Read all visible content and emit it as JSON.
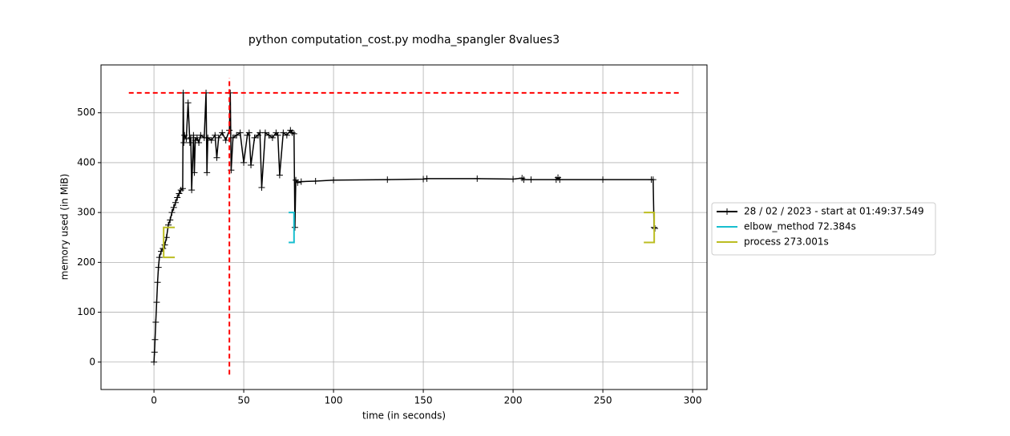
{
  "chart_data": {
    "type": "line",
    "title": "python computation_cost.py modha_spangler 8values3",
    "x_label": "time (in seconds)",
    "y_label": "memory used (in MiB)",
    "xlim": [
      -29.5,
      308
    ],
    "ylim": [
      -55,
      596
    ],
    "xticks": [
      0,
      50,
      100,
      150,
      200,
      250,
      300
    ],
    "yticks": [
      0,
      100,
      200,
      300,
      400,
      500
    ],
    "grid": true,
    "legend": "right",
    "series": [
      {
        "name": "28 / 02 / 2023 - start at 01:49:37.549",
        "color": "#000000",
        "marker": "+",
        "style": "solid",
        "x": [
          0,
          0.3,
          0.6,
          1,
          1.5,
          2,
          2.5,
          3,
          4,
          5,
          6,
          7,
          8,
          9,
          10,
          11,
          12,
          13,
          14,
          15,
          16,
          16.3,
          16.6,
          17,
          18,
          19,
          20,
          20.5,
          21,
          22,
          22.5,
          23,
          24,
          25,
          26,
          28,
          29,
          29.5,
          30,
          32,
          34,
          35,
          36,
          38,
          40,
          42,
          42.5,
          43,
          44,
          46,
          48,
          50,
          52,
          53,
          54,
          56,
          58,
          59,
          60,
          62,
          64,
          66,
          68,
          69,
          70,
          72,
          74,
          76,
          77,
          78,
          78.5,
          79,
          80,
          82,
          90,
          100,
          130,
          150,
          152,
          180,
          200,
          205,
          206,
          210,
          224,
          225,
          226,
          250,
          277,
          278,
          278.5,
          279
        ],
        "values": [
          0,
          20,
          45,
          80,
          120,
          160,
          190,
          210,
          222,
          228,
          235,
          250,
          275,
          285,
          300,
          310,
          320,
          330,
          338,
          345,
          348,
          540,
          440,
          455,
          448,
          520,
          440,
          450,
          345,
          455,
          380,
          445,
          450,
          440,
          455,
          450,
          540,
          380,
          450,
          445,
          455,
          410,
          450,
          460,
          445,
          465,
          540,
          385,
          450,
          455,
          460,
          400,
          455,
          460,
          395,
          450,
          455,
          460,
          350,
          460,
          455,
          450,
          460,
          455,
          375,
          460,
          455,
          465,
          460,
          458,
          270,
          365,
          360,
          362,
          363,
          365,
          366,
          367,
          368,
          368,
          367,
          369,
          366,
          366,
          366,
          370,
          366,
          366,
          366,
          366,
          270,
          268
        ]
      },
      {
        "name": "elbow_method 72.384s",
        "color": "#17becf",
        "style": "solid",
        "x": [
          75,
          78,
          78,
          75
        ],
        "values": [
          300,
          300,
          240,
          240
        ]
      },
      {
        "name": "process 273.001s",
        "color": "#bcbd22",
        "style": "solid",
        "x": [
          11.6,
          5.4,
          5.4,
          11.6,
          null,
          272.8,
          278.6,
          278.6,
          272.8
        ],
        "values": [
          270,
          270,
          210,
          210,
          null,
          300,
          300,
          240,
          240
        ]
      }
    ],
    "reference_lines": [
      {
        "color": "#ff0000",
        "style": "dashed",
        "x": [
          -14,
          293
        ],
        "values": [
          540,
          540
        ]
      },
      {
        "color": "#ff0000",
        "style": "dashed",
        "x": [
          42,
          42
        ],
        "values": [
          -25,
          570
        ]
      }
    ]
  }
}
